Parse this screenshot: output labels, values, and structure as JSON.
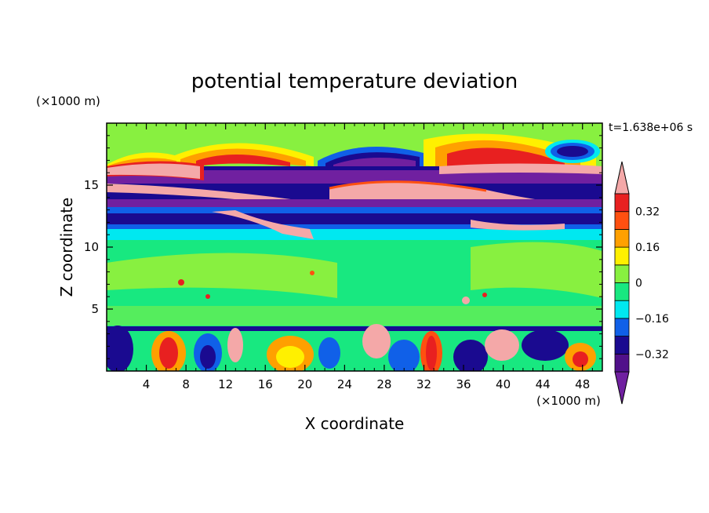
{
  "chart_data": {
    "type": "heatmap",
    "title": "potential temperature deviation",
    "xlabel": "X coordinate",
    "ylabel": "Z coordinate",
    "x_unit": "(×1000 m)",
    "y_unit": "(×1000 m)",
    "time_label": "t=1.638e+06 s",
    "xlim": [
      0,
      50
    ],
    "ylim": [
      0,
      20
    ],
    "xticks": [
      4,
      8,
      12,
      16,
      20,
      24,
      28,
      32,
      36,
      40,
      44,
      48
    ],
    "yticks": [
      5,
      10,
      15
    ],
    "colorbar": {
      "levels": [
        -0.4,
        -0.32,
        -0.24,
        -0.16,
        -0.08,
        0,
        0.08,
        0.16,
        0.24,
        0.32,
        0.4
      ],
      "labeled_ticks": [
        0.32,
        0.16,
        0,
        -0.16,
        -0.32
      ],
      "tick_labels": [
        "0.32",
        "0.16",
        "0",
        "−0.16",
        "−0.32"
      ],
      "colors_low_to_high": [
        "#7020a0",
        "#50108a",
        "#1a0a90",
        "#1060e8",
        "#00e8f0",
        "#18e880",
        "#88f040",
        "#fff000",
        "#ffa000",
        "#ff5010",
        "#e82020",
        "#f4a8a8"
      ]
    }
  }
}
